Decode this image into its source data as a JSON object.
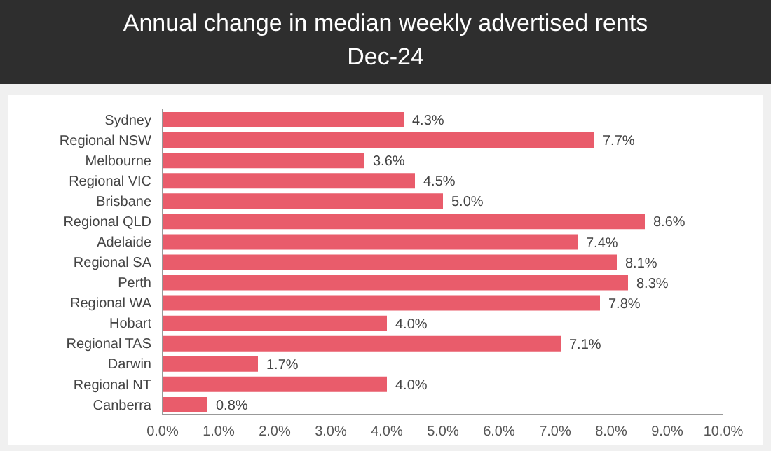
{
  "chart_data": {
    "type": "bar",
    "orientation": "horizontal",
    "title": "Annual change in median weekly advertised rents",
    "subtitle": "Dec-24",
    "categories": [
      "Sydney",
      "Regional NSW",
      "Melbourne",
      "Regional VIC",
      "Brisbane",
      "Regional QLD",
      "Adelaide",
      "Regional SA",
      "Perth",
      "Regional WA",
      "Hobart",
      "Regional TAS",
      "Darwin",
      "Regional NT",
      "Canberra"
    ],
    "values": [
      4.3,
      7.7,
      3.6,
      4.5,
      5.0,
      8.6,
      7.4,
      8.1,
      8.3,
      7.8,
      4.0,
      7.1,
      1.7,
      4.0,
      0.8
    ],
    "value_labels": [
      "4.3%",
      "7.7%",
      "3.6%",
      "4.5%",
      "5.0%",
      "8.6%",
      "7.4%",
      "8.1%",
      "8.3%",
      "7.8%",
      "4.0%",
      "7.1%",
      "1.7%",
      "4.0%",
      "0.8%"
    ],
    "color": "#e95c6b",
    "xlim": [
      0,
      10
    ],
    "xticks": [
      {
        "value": 0,
        "label": "0.0%"
      },
      {
        "value": 1,
        "label": "1.0%"
      },
      {
        "value": 2,
        "label": "2.0%"
      },
      {
        "value": 3,
        "label": "3.0%"
      },
      {
        "value": 4,
        "label": "4.0%"
      },
      {
        "value": 5,
        "label": "5.0%"
      },
      {
        "value": 6,
        "label": "6.0%"
      },
      {
        "value": 7,
        "label": "7.0%"
      },
      {
        "value": 8,
        "label": "8.0%"
      },
      {
        "value": 9,
        "label": "9.0%"
      },
      {
        "value": 10,
        "label": "10.0%"
      }
    ],
    "grid": false,
    "legend": false
  }
}
